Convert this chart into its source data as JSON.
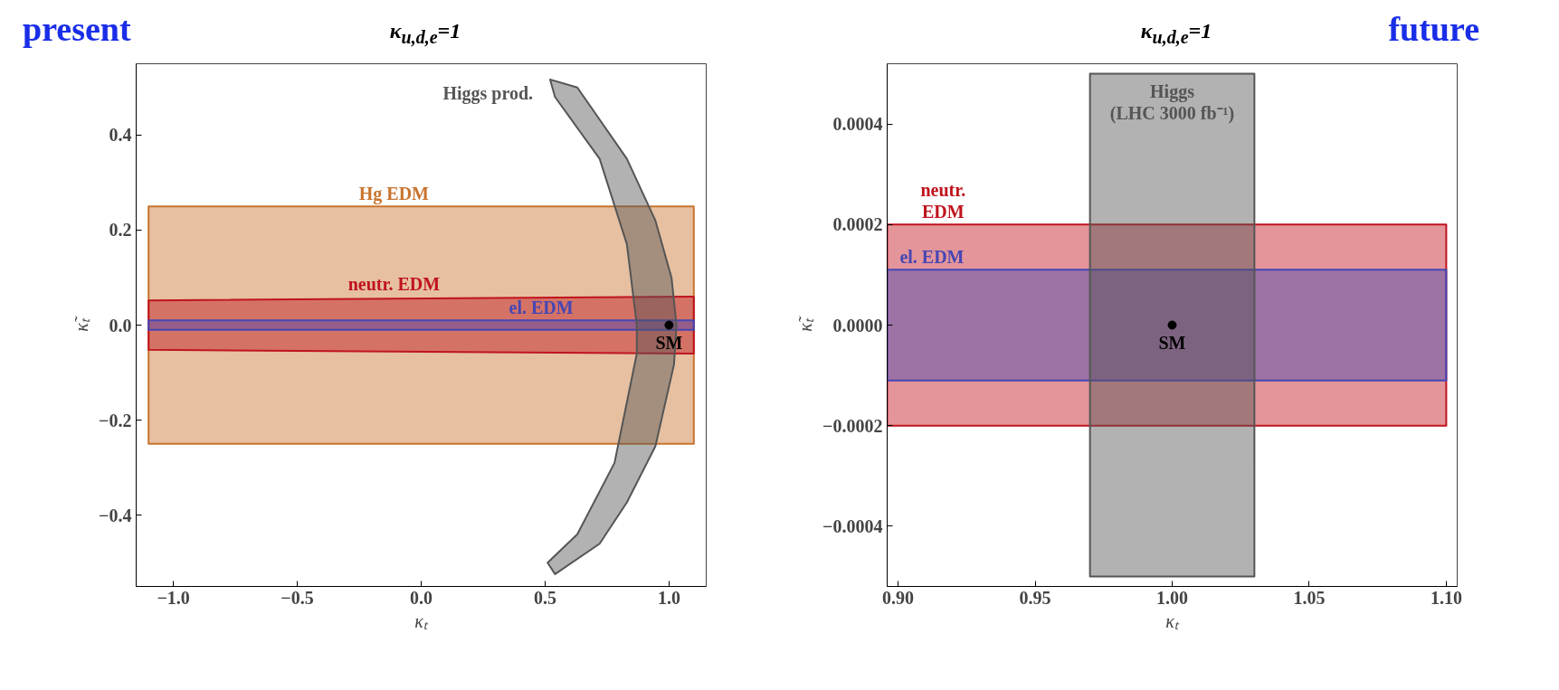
{
  "chart_data": [
    {
      "type": "area",
      "title": "κ$_{u,d,e}$=1",
      "xlabel": "κₜ",
      "ylabel": "κ̃ₜ",
      "annotations": [
        "present"
      ],
      "xlim": [
        -1.15,
        1.15
      ],
      "ylim": [
        -0.55,
        0.55
      ],
      "xticks": [
        {
          "value": -1.0,
          "label": "−1.0"
        },
        {
          "value": -0.5,
          "label": "−0.5"
        },
        {
          "value": 0.0,
          "label": "0.0"
        },
        0.5,
        {
          "value": 1.0,
          "label": "1.0"
        }
      ],
      "yticks": [
        {
          "value": -0.4,
          "label": "−0.4"
        },
        {
          "value": -0.2,
          "label": "−0.2"
        },
        {
          "value": 0.0,
          "label": "0.0"
        },
        0.2,
        0.4
      ],
      "grid": false,
      "legend": false,
      "series": [
        {
          "name": "Hg EDM",
          "color": "#c8742e",
          "x": [
            -1.1,
            1.1,
            1.1,
            -1.1
          ],
          "values": [
            -0.25,
            -0.25,
            0.25,
            0.25
          ]
        },
        {
          "name": "neutr. EDM",
          "color": "#c0141e",
          "x": [
            -1.1,
            1.1,
            1.1,
            -1.1
          ],
          "values": [
            -0.052,
            -0.06,
            0.06,
            0.052
          ]
        },
        {
          "name": "el. EDM",
          "color": "#4646b4",
          "x": [
            -1.1,
            1.1,
            1.1,
            -1.1
          ],
          "values": [
            -0.01,
            -0.01,
            0.01,
            0.01
          ]
        },
        {
          "name": "Higgs prod.",
          "color": "#555555",
          "x": [
            0.52,
            0.63,
            0.83,
            0.945,
            1.01,
            1.03,
            1.02,
            0.945,
            0.83,
            0.72,
            0.54,
            0.51,
            0.63,
            0.78,
            0.87,
            0.87,
            0.83,
            0.72,
            0.54
          ],
          "values": [
            0.517,
            0.5,
            0.35,
            0.22,
            0.1,
            0.0,
            -0.083,
            -0.255,
            -0.373,
            -0.46,
            -0.524,
            -0.5,
            -0.44,
            -0.29,
            -0.06,
            0.0,
            0.17,
            0.35,
            0.48
          ]
        },
        {
          "name": "SM",
          "type": "scatter",
          "marker": "circle",
          "color": "#000000",
          "x": [
            1.0
          ],
          "values": [
            0.0
          ]
        }
      ]
    },
    {
      "type": "area",
      "title": "κ$_{u,d,e}$=1",
      "xlabel": "κₜ",
      "ylabel": "κ̃ₜ",
      "annotations": [
        "future"
      ],
      "xlim": [
        0.896,
        1.104
      ],
      "ylim": [
        -0.00052,
        0.00052
      ],
      "xticks": [
        {
          "value": 0.9,
          "label": "0.90"
        },
        0.95,
        {
          "value": 1.0,
          "label": "1.00"
        },
        1.05,
        {
          "value": 1.1,
          "label": "1.10"
        }
      ],
      "yticks": [
        {
          "value": -0.0004,
          "label": "−0.0004"
        },
        {
          "value": -0.0002,
          "label": "−0.0002"
        },
        {
          "value": 0.0,
          "label": "0.0000"
        },
        {
          "value": 0.0002,
          "label": "0.0002"
        },
        {
          "value": 0.0004,
          "label": "0.0004"
        }
      ],
      "grid": false,
      "legend": false,
      "series": [
        {
          "name": "neutr.\nEDM",
          "color": "#c0141e",
          "x": [
            0.896,
            1.1,
            1.1,
            0.896
          ],
          "values": [
            -0.0002,
            -0.0002,
            0.0002,
            0.0002
          ]
        },
        {
          "name": "el. EDM",
          "color": "#4646b4",
          "x": [
            0.896,
            1.1,
            1.1,
            0.896
          ],
          "values": [
            -0.00011,
            -0.00011,
            0.00011,
            0.00011
          ]
        },
        {
          "name": "Higgs\n(LHC 3000 fb⁻¹)",
          "color": "#555555",
          "x": [
            0.97,
            1.03,
            1.03,
            0.97
          ],
          "values": [
            -0.0005,
            -0.0005,
            0.0005,
            0.0005
          ]
        },
        {
          "name": "SM",
          "type": "scatter",
          "marker": "circle",
          "color": "#000000",
          "x": [
            1.0
          ],
          "values": [
            0.0
          ]
        }
      ]
    }
  ]
}
